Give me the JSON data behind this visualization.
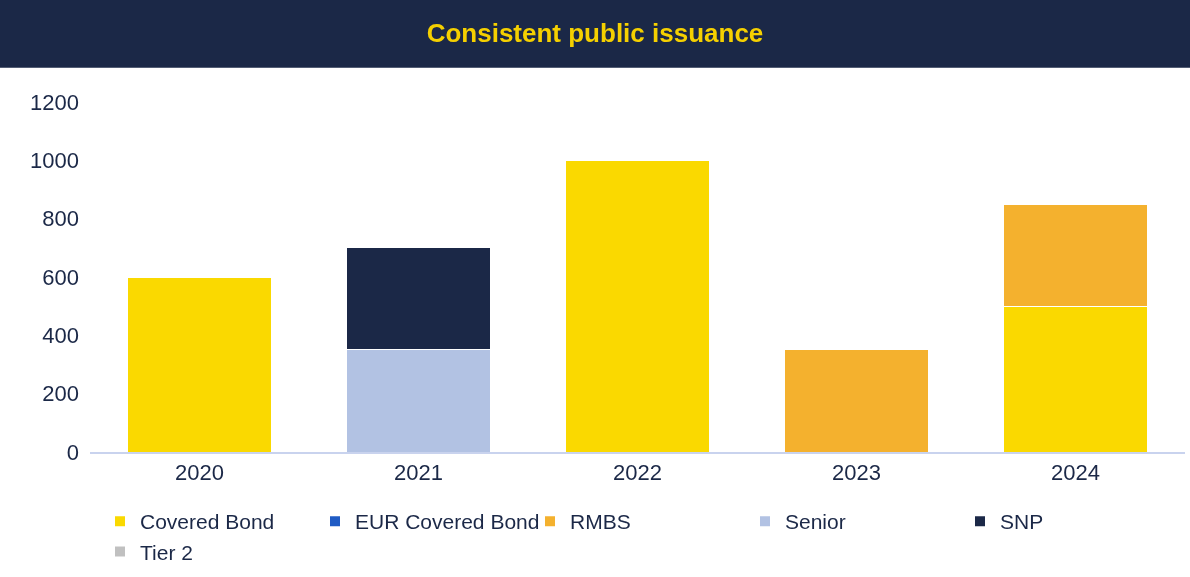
{
  "chart_data": {
    "type": "bar",
    "title": "Consistent public issuance",
    "stacked": true,
    "categories": [
      "2020",
      "2021",
      "2022",
      "2023",
      "2024"
    ],
    "series": [
      {
        "name": "Covered Bond",
        "color": "#fad900",
        "values": [
          600,
          null,
          1000,
          null,
          500
        ]
      },
      {
        "name": "EUR Covered Bond",
        "color": "#1f5bc4",
        "values": [
          null,
          null,
          null,
          null,
          null
        ]
      },
      {
        "name": "RMBS",
        "color": "#f4b12e",
        "values": [
          null,
          null,
          null,
          350,
          350
        ]
      },
      {
        "name": "Senior",
        "color": "#b2c2e3",
        "values": [
          null,
          350,
          null,
          null,
          null
        ]
      },
      {
        "name": "SNP",
        "color": "#1b2847",
        "values": [
          null,
          350,
          null,
          null,
          null
        ]
      },
      {
        "name": "Tier 2",
        "color": "#c0c0c0",
        "values": [
          null,
          null,
          null,
          null,
          null
        ]
      }
    ],
    "ylim": [
      0,
      1200
    ],
    "yticks": [
      0,
      200,
      400,
      600,
      800,
      1000,
      1200
    ],
    "legend": "bottom"
  }
}
